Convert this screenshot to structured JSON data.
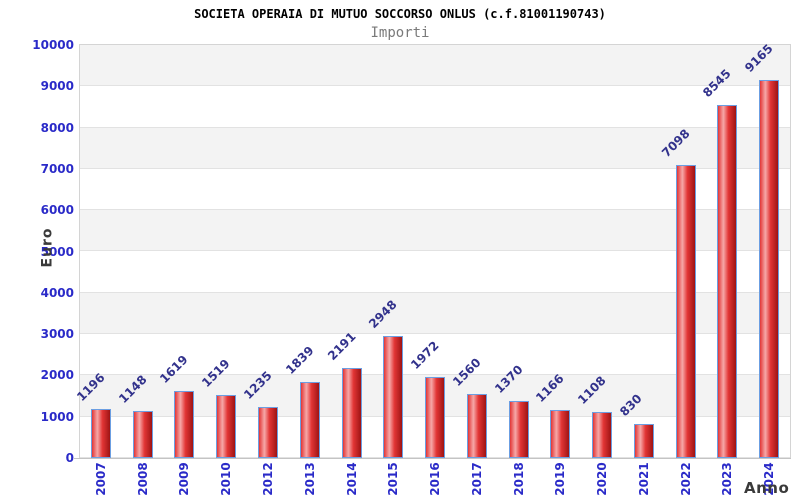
{
  "chart_data": {
    "type": "bar",
    "title": "SOCIETA OPERAIA DI MUTUO SOCCORSO ONLUS (c.f.81001190743)",
    "subtitle": "Importi",
    "xlabel": "Anno",
    "ylabel": "Euro",
    "categories": [
      "2007",
      "2008",
      "2009",
      "2010",
      "2012",
      "2013",
      "2014",
      "2015",
      "2016",
      "2017",
      "2018",
      "2019",
      "2020",
      "2021",
      "2022",
      "2023",
      "2024"
    ],
    "values": [
      1196,
      1148,
      1619,
      1519,
      1235,
      1839,
      2191,
      2948,
      1972,
      1560,
      1370,
      1166,
      1108,
      830,
      7098,
      8545,
      9165
    ],
    "ylim": [
      0,
      10000
    ],
    "ytick_step": 1000,
    "grid": "alternating-horizontal-bands",
    "legend_position": "none",
    "value_labels": "above-bars-rotated-45",
    "x_tick_rotation": -90,
    "colors": {
      "title": "#000000",
      "subtitle": "#7a7a7a",
      "tick_label": "#2a2ac8",
      "value_label": "#32328c",
      "axis_title": "#3a3a3a",
      "bar_main": "#e23535",
      "bar_highlight": "#f6a8a8",
      "bar_dark": "#9e1414",
      "bar_border": "#6b9ee2",
      "band_shade": "#f3f3f3",
      "band_line": "#e2e2e2",
      "plot_border": "#d4d4d4"
    }
  }
}
